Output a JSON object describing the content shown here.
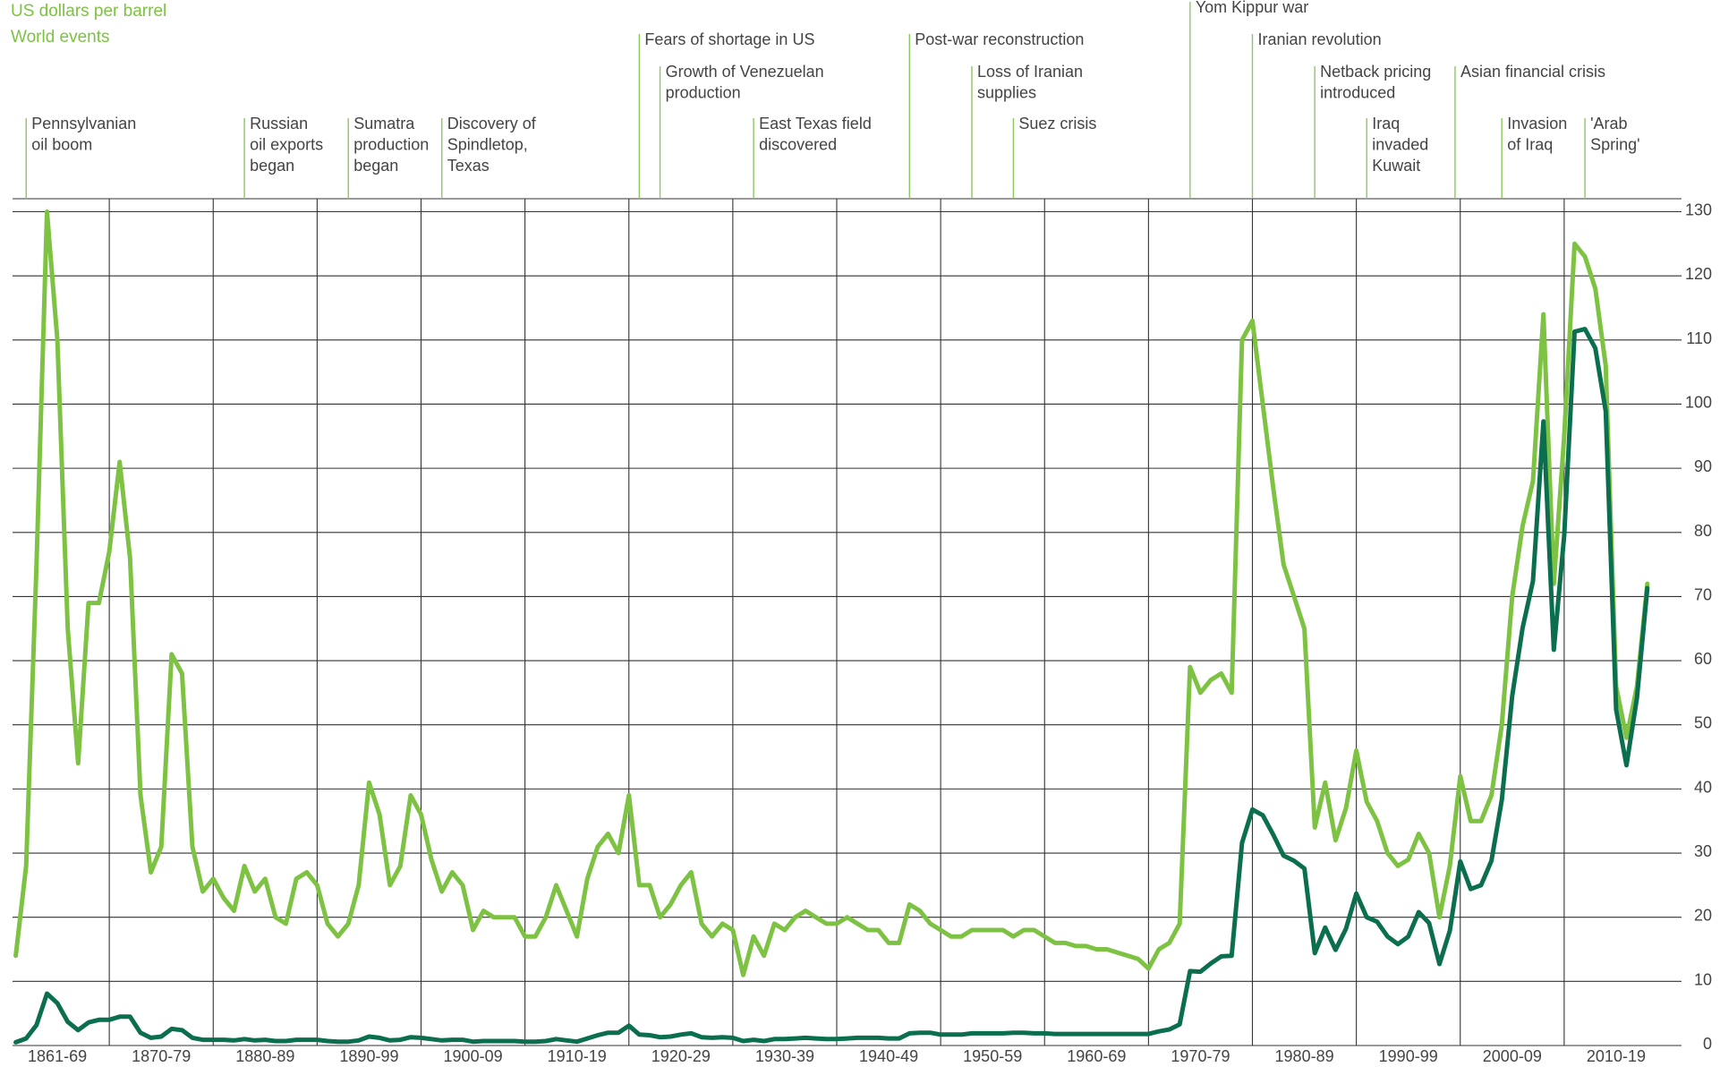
{
  "chart_data": {
    "type": "line",
    "y_label": "US dollars per barrel",
    "events_label": "World events",
    "xlim": [
      1860,
      2020
    ],
    "ylim": [
      0,
      130
    ],
    "yticks": [
      0,
      10,
      20,
      30,
      40,
      50,
      60,
      70,
      80,
      90,
      100,
      110,
      120,
      130
    ],
    "grid": true,
    "xgrid": [
      1870,
      1880,
      1890,
      1900,
      1910,
      1920,
      1930,
      1940,
      1950,
      1960,
      1970,
      1980,
      1990,
      2000,
      2010
    ],
    "xticks": [
      {
        "value": 1865,
        "label": "1861-69"
      },
      {
        "value": 1875,
        "label": "1870-79"
      },
      {
        "value": 1885,
        "label": "1880-89"
      },
      {
        "value": 1895,
        "label": "1890-99"
      },
      {
        "value": 1905,
        "label": "1900-09"
      },
      {
        "value": 1915,
        "label": "1910-19"
      },
      {
        "value": 1925,
        "label": "1920-29"
      },
      {
        "value": 1935,
        "label": "1930-39"
      },
      {
        "value": 1945,
        "label": "1940-49"
      },
      {
        "value": 1955,
        "label": "1950-59"
      },
      {
        "value": 1965,
        "label": "1960-69"
      },
      {
        "value": 1975,
        "label": "1970-79"
      },
      {
        "value": 1985,
        "label": "1980-89"
      },
      {
        "value": 1995,
        "label": "1990-99"
      },
      {
        "value": 2005,
        "label": "2000-09"
      },
      {
        "value": 2015,
        "label": "2010-19"
      }
    ],
    "x": [
      1861,
      1862,
      1863,
      1864,
      1865,
      1866,
      1867,
      1868,
      1869,
      1870,
      1871,
      1872,
      1873,
      1874,
      1875,
      1876,
      1877,
      1878,
      1879,
      1880,
      1881,
      1882,
      1883,
      1884,
      1885,
      1886,
      1887,
      1888,
      1889,
      1890,
      1891,
      1892,
      1893,
      1894,
      1895,
      1896,
      1897,
      1898,
      1899,
      1900,
      1901,
      1902,
      1903,
      1904,
      1905,
      1906,
      1907,
      1908,
      1909,
      1910,
      1911,
      1912,
      1913,
      1914,
      1915,
      1916,
      1917,
      1918,
      1919,
      1920,
      1921,
      1922,
      1923,
      1924,
      1925,
      1926,
      1927,
      1928,
      1929,
      1930,
      1931,
      1932,
      1933,
      1934,
      1935,
      1936,
      1937,
      1938,
      1939,
      1940,
      1941,
      1942,
      1943,
      1944,
      1945,
      1946,
      1947,
      1948,
      1949,
      1950,
      1951,
      1952,
      1953,
      1954,
      1955,
      1956,
      1957,
      1958,
      1959,
      1960,
      1961,
      1962,
      1963,
      1964,
      1965,
      1966,
      1967,
      1968,
      1969,
      1970,
      1971,
      1972,
      1973,
      1974,
      1975,
      1976,
      1977,
      1978,
      1979,
      1980,
      1981,
      1982,
      1983,
      1984,
      1985,
      1986,
      1987,
      1988,
      1989,
      1990,
      1991,
      1992,
      1993,
      1994,
      1995,
      1996,
      1997,
      1998,
      1999,
      2000,
      2001,
      2002,
      2003,
      2004,
      2005,
      2006,
      2007,
      2008,
      2009,
      2010,
      2011,
      2012,
      2013,
      2014,
      2015,
      2016,
      2017,
      2018
    ],
    "series": [
      {
        "color": "#7dc242",
        "values": [
          14,
          28,
          75,
          130,
          110,
          65,
          44,
          69,
          69,
          77,
          91,
          76,
          39,
          27,
          31,
          61,
          58,
          31,
          24,
          26,
          23,
          21,
          28,
          24,
          26,
          20,
          19,
          26,
          27,
          25,
          19,
          17,
          19,
          25,
          41,
          36,
          25,
          28,
          39,
          36,
          29,
          24,
          27,
          25,
          18,
          21,
          20,
          20,
          20,
          17,
          17,
          20,
          25,
          21,
          17,
          26,
          31,
          33,
          30,
          39,
          25,
          25,
          20,
          22,
          25,
          27,
          19,
          17,
          19,
          18,
          11,
          17,
          14,
          19,
          18,
          20,
          21,
          20,
          19,
          19,
          20,
          19,
          18,
          18,
          16,
          16,
          22,
          21,
          19,
          18,
          17,
          17,
          18,
          18,
          18,
          18,
          17,
          18,
          18,
          17,
          16,
          16,
          15.5,
          15.5,
          15,
          15,
          14.5,
          14,
          13.5,
          12,
          15,
          16,
          19,
          59,
          55,
          57,
          58,
          55,
          110,
          113,
          100,
          87,
          75,
          70,
          65,
          34,
          41,
          32,
          37,
          46,
          38,
          35,
          30,
          28,
          29,
          33,
          30,
          20,
          28,
          42,
          35,
          35,
          39,
          50,
          70,
          81,
          88,
          114,
          72,
          95,
          125,
          123,
          118,
          106,
          56,
          48,
          56,
          72
        ]
      },
      {
        "color": "#0a6e4f",
        "values": [
          0.5,
          1.1,
          3.2,
          8.1,
          6.6,
          3.7,
          2.4,
          3.6,
          4,
          4,
          4.5,
          4.5,
          2,
          1.2,
          1.4,
          2.6,
          2.4,
          1.2,
          0.9,
          0.9,
          0.9,
          0.8,
          1,
          0.8,
          0.9,
          0.7,
          0.7,
          0.9,
          0.9,
          0.9,
          0.7,
          0.6,
          0.6,
          0.8,
          1.4,
          1.2,
          0.8,
          0.9,
          1.3,
          1.2,
          1,
          0.8,
          0.9,
          0.9,
          0.6,
          0.7,
          0.7,
          0.7,
          0.7,
          0.6,
          0.6,
          0.7,
          1,
          0.8,
          0.6,
          1.1,
          1.6,
          2,
          2,
          3.1,
          1.7,
          1.6,
          1.3,
          1.4,
          1.7,
          1.9,
          1.3,
          1.2,
          1.3,
          1.2,
          0.7,
          0.9,
          0.7,
          1,
          1,
          1.1,
          1.2,
          1.1,
          1,
          1,
          1.1,
          1.2,
          1.2,
          1.2,
          1.1,
          1.1,
          1.9,
          2,
          2,
          1.7,
          1.7,
          1.7,
          1.9,
          1.9,
          1.9,
          1.9,
          2,
          2,
          1.9,
          1.9,
          1.8,
          1.8,
          1.8,
          1.8,
          1.8,
          1.8,
          1.8,
          1.8,
          1.8,
          1.8,
          2.2,
          2.5,
          3.3,
          11.6,
          11.5,
          12.8,
          13.9,
          14,
          31.6,
          36.8,
          35.9,
          32.9,
          29.6,
          28.8,
          27.6,
          14.4,
          18.4,
          14.9,
          18.2,
          23.7,
          20,
          19.3,
          17,
          15.8,
          17,
          20.8,
          19.1,
          12.7,
          17.9,
          28.7,
          24.4,
          25,
          28.8,
          38.3,
          54.5,
          65.1,
          72.4,
          97.3,
          61.7,
          79.5,
          111.3,
          111.7,
          108.7,
          98.9,
          52.4,
          43.7,
          54.2,
          71.3
        ]
      }
    ],
    "events": [
      {
        "year": 1862,
        "label": [
          "Pennsylvanian",
          "oil boom"
        ]
      },
      {
        "year": 1883,
        "label": [
          "Russian",
          "oil exports",
          "began"
        ]
      },
      {
        "year": 1893,
        "label": [
          "Sumatra",
          "production",
          "began"
        ]
      },
      {
        "year": 1902,
        "label": [
          "Discovery of",
          "Spindletop,",
          "Texas"
        ]
      },
      {
        "year": 1921,
        "label": [
          "Fears of shortage in US"
        ]
      },
      {
        "year": 1923,
        "label": [
          "Growth of Venezuelan",
          "production"
        ]
      },
      {
        "year": 1932,
        "label": [
          "East Texas field",
          "discovered"
        ]
      },
      {
        "year": 1947,
        "label": [
          "Post-war reconstruction"
        ]
      },
      {
        "year": 1953,
        "label": [
          "Loss of Iranian",
          "supplies"
        ]
      },
      {
        "year": 1957,
        "label": [
          "Suez crisis"
        ]
      },
      {
        "year": 1974,
        "label": [
          "Yom Kippur war"
        ]
      },
      {
        "year": 1980,
        "label": [
          "Iranian revolution"
        ]
      },
      {
        "year": 1986,
        "label": [
          "Netback pricing",
          "introduced"
        ]
      },
      {
        "year": 1991,
        "label": [
          "Iraq",
          "invaded",
          "Kuwait"
        ]
      },
      {
        "year": 1999.5,
        "label": [
          "Asian financial crisis"
        ]
      },
      {
        "year": 2004,
        "label": [
          "Invasion",
          "of Iraq"
        ]
      },
      {
        "year": 2012,
        "label": [
          "'Arab",
          "Spring'"
        ]
      }
    ]
  }
}
